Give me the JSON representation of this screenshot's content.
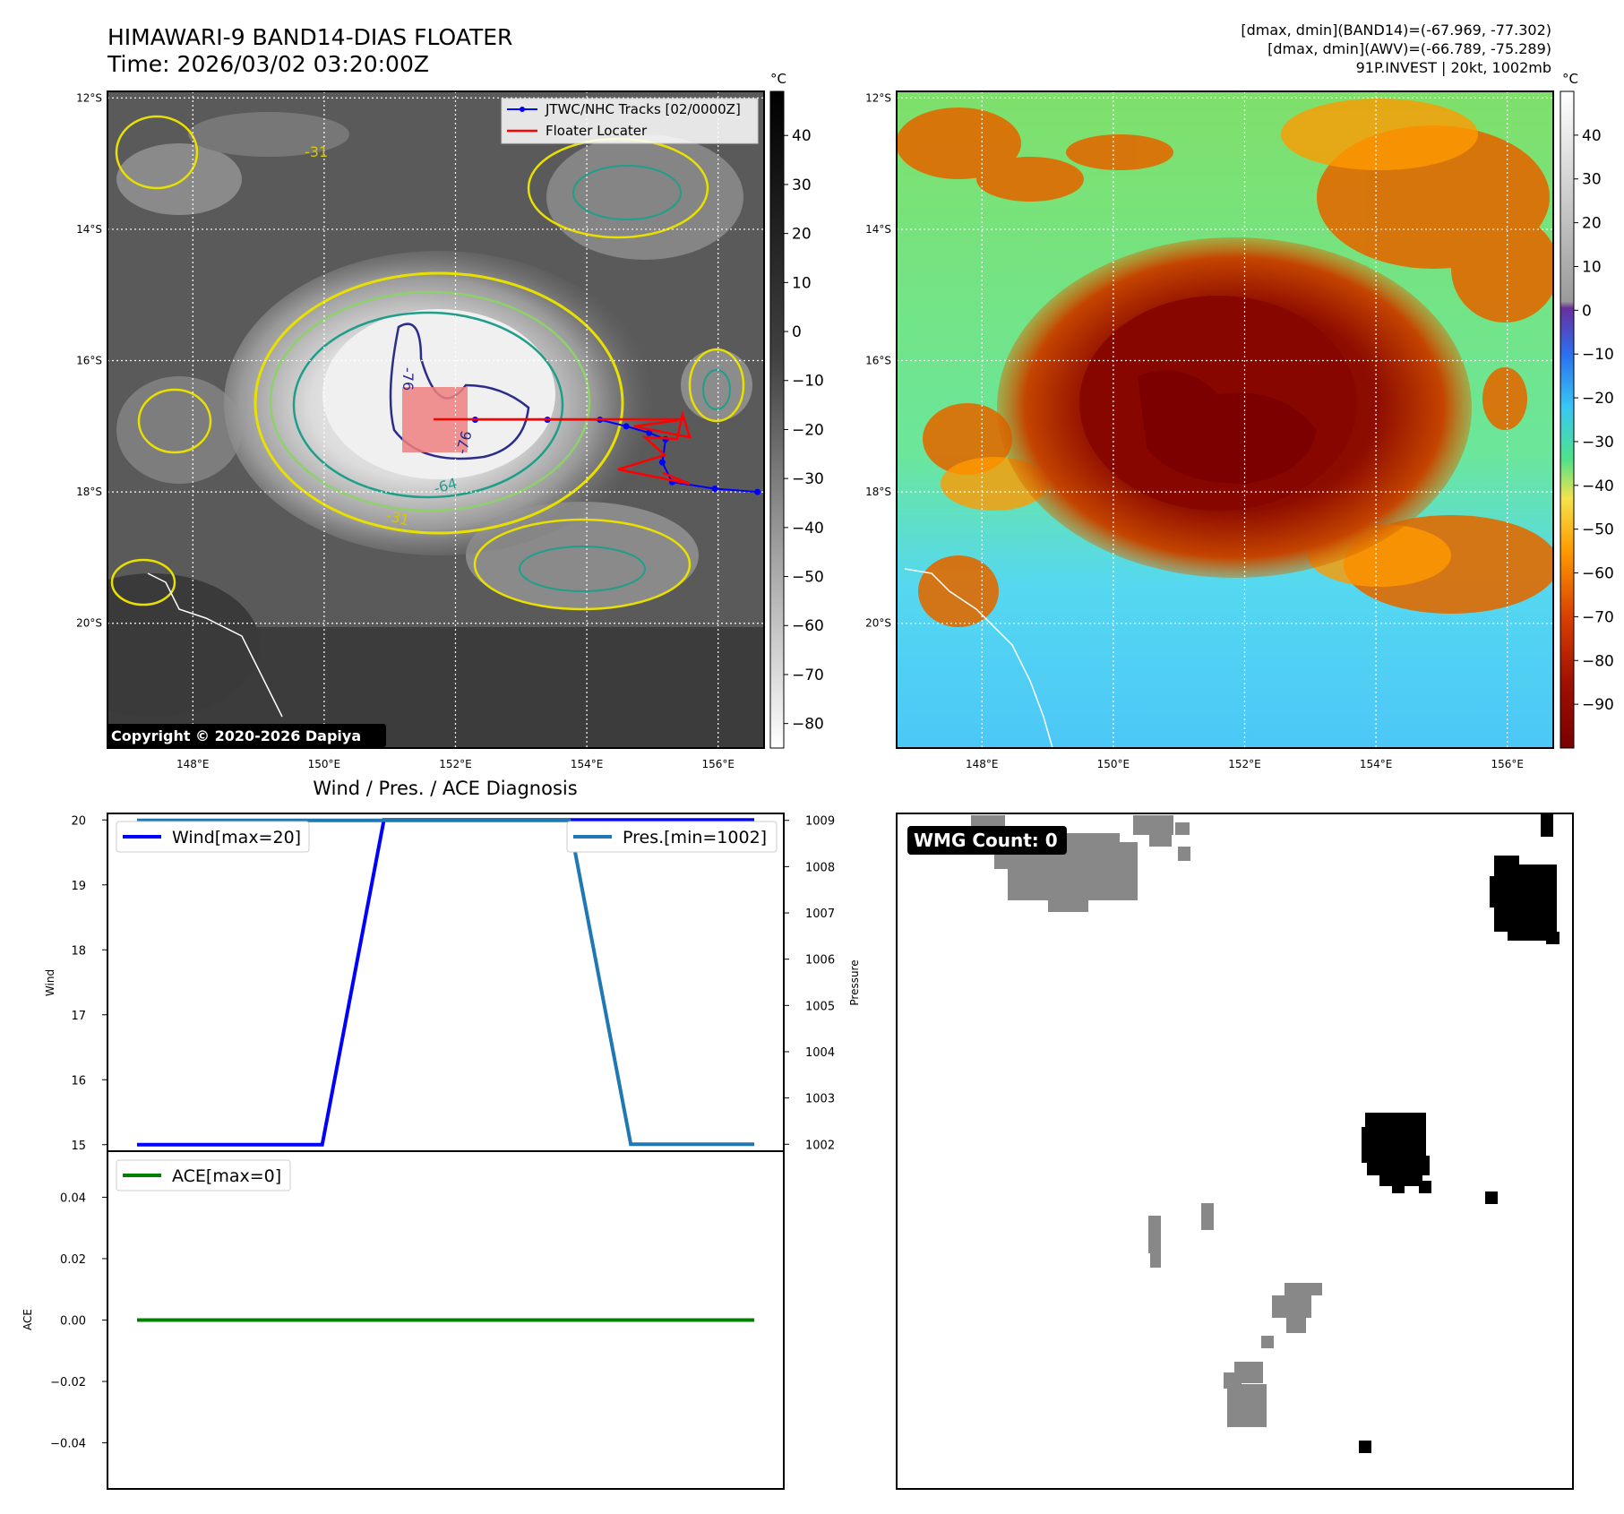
{
  "header": {
    "title_line1": "HIMAWARI-9 BAND14-DIAS FLOATER",
    "title_line2": "Time: 2026/03/02 03:20:00Z",
    "info_line1": "[dmax, dmin](BAND14)=(-67.969, -77.302)",
    "info_line2": "[dmax, dmin](AWV)=(-66.789, -75.289)",
    "info_line3": "91P.INVEST | 20kt, 1002mb"
  },
  "map": {
    "lat_labels": [
      "12°S",
      "14°S",
      "16°S",
      "18°S",
      "20°S"
    ],
    "lat_values": [
      -12,
      -14,
      -16,
      -18,
      -20
    ],
    "lon_labels": [
      "148°E",
      "150°E",
      "152°E",
      "154°E",
      "156°E"
    ],
    "lon_values": [
      148,
      150,
      152,
      154,
      156
    ],
    "extent": {
      "lon_min": 146.7,
      "lon_max": 156.7,
      "lat_min": -21.9,
      "lat_max": -11.9
    },
    "legend_track": "JTWC/NHC Tracks [02/0000Z]",
    "legend_floater": "Floater Locater",
    "copyright": "Copyright © 2020-2026 Dapiya",
    "contour_labels": [
      "-76",
      "-76",
      "-64",
      "-31",
      "-31"
    ],
    "track_points": [
      {
        "lon": 156.6,
        "lat": -18.0
      },
      {
        "lon": 155.95,
        "lat": -17.95
      },
      {
        "lon": 155.3,
        "lat": -17.85
      },
      {
        "lon": 155.15,
        "lat": -17.55
      },
      {
        "lon": 155.2,
        "lat": -17.2
      },
      {
        "lon": 154.95,
        "lat": -17.1
      },
      {
        "lon": 154.6,
        "lat": -17.0
      },
      {
        "lon": 154.2,
        "lat": -16.9
      },
      {
        "lon": 153.4,
        "lat": -16.9
      },
      {
        "lon": 152.3,
        "lat": -16.9
      }
    ],
    "track_color": "#0000ff",
    "floater_color": "#ff0000",
    "floater_box_color": "#f08080"
  },
  "colorbar_gray": {
    "unit": "°C",
    "ticks": [
      "40",
      "30",
      "20",
      "10",
      "0",
      "−10",
      "−20",
      "−30",
      "−40",
      "−50",
      "−60",
      "−70",
      "−80"
    ],
    "tick_values": [
      40,
      30,
      20,
      10,
      0,
      -10,
      -20,
      -30,
      -40,
      -50,
      -60,
      -70,
      -80
    ],
    "range": [
      -85,
      49
    ]
  },
  "colorbar_color": {
    "unit": "°C",
    "ticks": [
      "40",
      "30",
      "20",
      "10",
      "0",
      "−10",
      "−20",
      "−30",
      "−40",
      "−50",
      "−60",
      "−70",
      "−80",
      "−90"
    ],
    "tick_values": [
      40,
      30,
      20,
      10,
      0,
      -10,
      -20,
      -30,
      -40,
      -50,
      -60,
      -70,
      -80,
      -90
    ],
    "range": [
      -100,
      50
    ]
  },
  "diagnosis": {
    "title": "Wind / Pres. / ACE Diagnosis",
    "wind_axis_label": "Wind",
    "pressure_axis_label": "Pressure",
    "ace_axis_label": "ACE",
    "wind_legend": "Wind[max=20]",
    "pressure_legend": "Pres.[min=1002]",
    "ace_legend": "ACE[max=0]",
    "wind_color": "#0000ff",
    "pressure_color": "#1f77b4",
    "ace_color": "#008000",
    "wind_ticks": [
      "20",
      "19",
      "18",
      "17",
      "16",
      "15"
    ],
    "pressure_ticks": [
      "1009",
      "1008",
      "1007",
      "1006",
      "1005",
      "1004",
      "1003",
      "1002"
    ],
    "ace_ticks": [
      "0.04",
      "0.02",
      "0.00",
      "−0.02",
      "−0.04"
    ]
  },
  "wmg": {
    "label": "WMG Count: 0"
  },
  "chart_data": [
    {
      "type": "line",
      "title": "Wind / Pres. / ACE Diagnosis",
      "x": [
        0,
        1,
        2,
        3,
        4,
        5,
        6,
        7,
        8,
        9,
        10
      ],
      "series": [
        {
          "name": "Wind[max=20]",
          "axis": "left",
          "values": [
            15,
            15,
            15,
            15,
            20,
            20,
            20,
            20,
            20,
            20,
            20
          ]
        },
        {
          "name": "Pres.[min=1002]",
          "axis": "right",
          "values": [
            1009,
            1009,
            1009,
            1009,
            1009,
            1009,
            1009,
            1009,
            1002,
            1002,
            1002
          ]
        }
      ],
      "ylabel": "Wind",
      "ylabel_right": "Pressure",
      "ylim": [
        14.9,
        20.1
      ],
      "ylim_right": [
        1001.85,
        1009.15
      ],
      "grid": false,
      "legend": "top-left / top-right"
    },
    {
      "type": "line",
      "x": [
        0,
        1,
        2,
        3,
        4,
        5,
        6,
        7,
        8,
        9,
        10
      ],
      "series": [
        {
          "name": "ACE[max=0]",
          "values": [
            0,
            0,
            0,
            0,
            0,
            0,
            0,
            0,
            0,
            0,
            0
          ]
        }
      ],
      "ylabel": "ACE",
      "ylim": [
        -0.055,
        0.055
      ],
      "grid": false,
      "legend": "top-left"
    }
  ]
}
